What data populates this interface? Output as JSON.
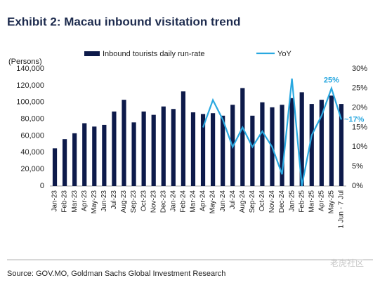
{
  "chart_data": {
    "type": "bar_line",
    "title": "Exhibit 2: Macau inbound visitation trend",
    "y_axis_label": "(Persons)",
    "source": "Source: GOV.MO, Goldman Sachs Global Investment Research",
    "watermark": "老虎社区",
    "categories": [
      "Jan-23",
      "Feb-23",
      "Mar-23",
      "Apr-23",
      "May-23",
      "Jun-23",
      "Jul-23",
      "Aug-23",
      "Sep-23",
      "Oct-23",
      "Nov-23",
      "Dec-23",
      "Jan-24",
      "Feb-24",
      "Mar-24",
      "Apr-24",
      "May-24",
      "Jun-24",
      "Jul-24",
      "Aug-24",
      "Sep-24",
      "Oct-24",
      "Nov-24",
      "Dec-24",
      "Jan-25",
      "Feb-25",
      "Mar-25",
      "Apr-25",
      "May-25",
      "1 Jun - 7 Jul"
    ],
    "series": [
      {
        "name": "Inbound tourists daily run-rate",
        "color": "#0d1a4a",
        "type": "bar",
        "values": [
          45000,
          56000,
          63000,
          75000,
          71000,
          73000,
          89000,
          103000,
          76000,
          89000,
          85000,
          95000,
          92000,
          113000,
          88000,
          86000,
          87000,
          84000,
          97000,
          117000,
          84000,
          100000,
          94000,
          97000,
          105000,
          112000,
          98000,
          103000,
          108000,
          98000
        ]
      },
      {
        "name": "YoY",
        "color": "#29a8e0",
        "type": "line",
        "axis": "y2",
        "values": [
          null,
          null,
          null,
          null,
          null,
          null,
          null,
          null,
          null,
          null,
          null,
          null,
          null,
          null,
          null,
          15,
          22,
          17,
          10,
          15,
          10,
          14,
          10,
          3,
          27.5,
          0,
          13,
          18,
          25,
          17
        ],
        "value_labels": [
          null,
          null,
          null,
          null,
          null,
          null,
          null,
          null,
          null,
          null,
          null,
          null,
          null,
          null,
          null,
          null,
          null,
          null,
          null,
          null,
          null,
          null,
          null,
          null,
          null,
          null,
          null,
          null,
          "25%",
          "~17%"
        ]
      }
    ],
    "ylim": [
      0,
      140000
    ],
    "yticks": [
      0,
      {
        "value": 20000,
        "label": "20,000"
      },
      {
        "value": 40000,
        "label": "40,000"
      },
      {
        "value": 60000,
        "label": "60,000"
      },
      {
        "value": 80000,
        "label": "80,000"
      },
      {
        "value": 100000,
        "label": "100,000"
      },
      {
        "value": 120000,
        "label": "120,000"
      },
      {
        "value": 140000,
        "label": "140,000"
      }
    ],
    "y2lim": [
      0,
      30
    ],
    "y2ticks": [
      {
        "value": 0,
        "label": "0%"
      },
      {
        "value": 5,
        "label": "5%"
      },
      {
        "value": 10,
        "label": "10%"
      },
      {
        "value": 15,
        "label": "15%"
      },
      {
        "value": 20,
        "label": "20%"
      },
      {
        "value": 25,
        "label": "25%"
      },
      {
        "value": 30,
        "label": "30%"
      }
    ],
    "grid": false
  }
}
